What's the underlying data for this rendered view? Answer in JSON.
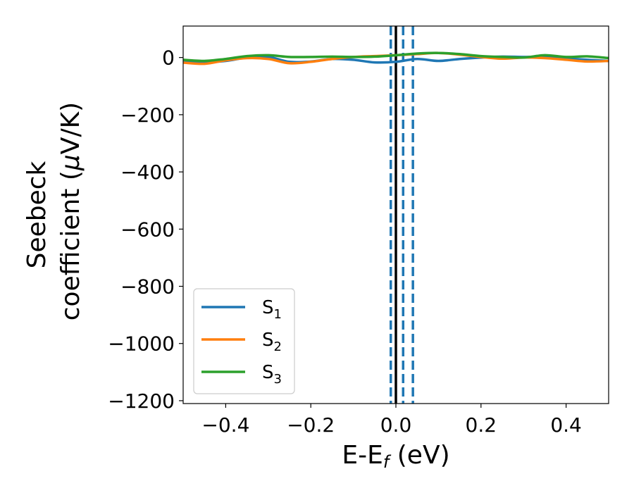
{
  "chart_data": {
    "type": "line",
    "xlabel": "E-E",
    "xlabel_sub": "f",
    "xlabel_unit": " (eV)",
    "ylabel_line1": "Seebeck",
    "ylabel_line2": "coefficient  (",
    "ylabel_mu": "μ",
    "ylabel_unit": "V/K)",
    "xlim": [
      -0.5,
      0.5
    ],
    "ylim": [
      -1210,
      110
    ],
    "xticks": [
      -0.4,
      -0.2,
      0.0,
      0.2,
      0.4
    ],
    "xtick_labels": [
      "−0.4",
      "−0.2",
      "0.0",
      "0.2",
      "0.4"
    ],
    "yticks": [
      0,
      -200,
      -400,
      -600,
      -800,
      -1000,
      -1200
    ],
    "ytick_labels": [
      "0",
      "−200",
      "−400",
      "−600",
      "−800",
      "−1000",
      "−1200"
    ],
    "legend_placement": "lower-left",
    "grid": false,
    "series": [
      {
        "name": "S",
        "sub": "1",
        "color": "#1f77b4",
        "x": [
          -0.5,
          -0.45,
          -0.4,
          -0.35,
          -0.3,
          -0.25,
          -0.2,
          -0.15,
          -0.1,
          -0.05,
          0.0,
          0.05,
          0.1,
          0.15,
          0.2,
          0.25,
          0.3,
          0.35,
          0.4,
          0.45,
          0.5
        ],
        "y": [
          -12,
          -16,
          -12,
          0,
          2,
          -15,
          -14,
          -5,
          -8,
          -17,
          -15,
          -5,
          -12,
          -5,
          0,
          3,
          2,
          2,
          -3,
          -8,
          -12
        ]
      },
      {
        "name": "S",
        "sub": "2",
        "color": "#ff7f0e",
        "x": [
          -0.5,
          -0.45,
          -0.4,
          -0.35,
          -0.3,
          -0.25,
          -0.2,
          -0.15,
          -0.1,
          -0.05,
          0.0,
          0.05,
          0.1,
          0.15,
          0.2,
          0.25,
          0.3,
          0.35,
          0.4,
          0.45,
          0.5
        ],
        "y": [
          -18,
          -22,
          -10,
          -2,
          -5,
          -20,
          -15,
          -5,
          2,
          5,
          8,
          12,
          16,
          10,
          2,
          -4,
          0,
          -2,
          -8,
          -14,
          -12
        ]
      },
      {
        "name": "S",
        "sub": "3",
        "color": "#2ca02c",
        "x": [
          -0.5,
          -0.45,
          -0.4,
          -0.35,
          -0.3,
          -0.25,
          -0.2,
          -0.15,
          -0.1,
          -0.05,
          0.0,
          0.05,
          0.1,
          0.15,
          0.2,
          0.25,
          0.3,
          0.35,
          0.4,
          0.45,
          0.5
        ],
        "y": [
          -8,
          -12,
          -5,
          5,
          8,
          2,
          2,
          3,
          2,
          3,
          8,
          14,
          16,
          12,
          5,
          2,
          0,
          8,
          2,
          4,
          -2
        ]
      }
    ],
    "vlines": [
      {
        "x": 0.0,
        "color": "#000000",
        "style": "solid"
      },
      {
        "x": -0.012,
        "color": "#1f77b4",
        "style": "dashed"
      },
      {
        "x": 0.017,
        "color": "#1f77b4",
        "style": "dashed"
      },
      {
        "x": 0.04,
        "color": "#1f77b4",
        "style": "dashed"
      }
    ]
  }
}
